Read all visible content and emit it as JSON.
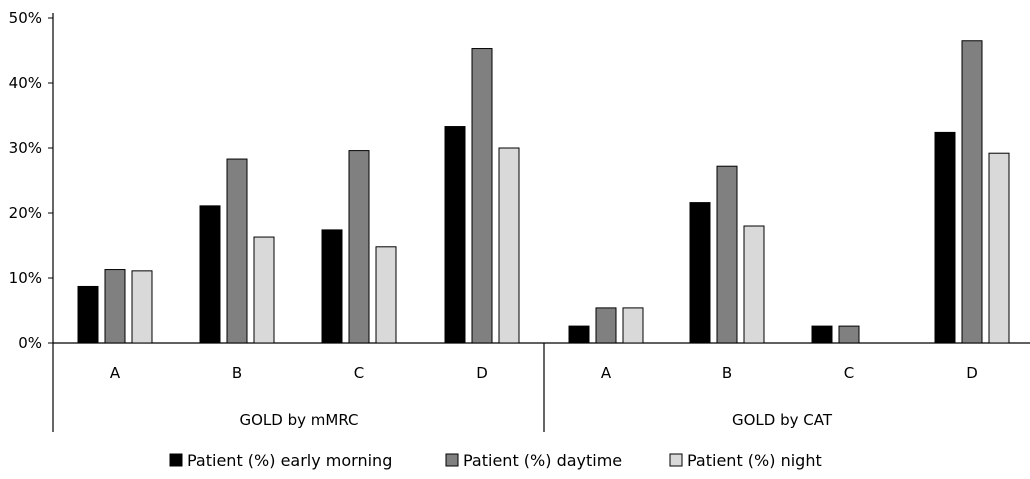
{
  "chart_data": {
    "type": "bar",
    "groups": [
      {
        "label": "GOLD by mMRC",
        "categories": [
          "A",
          "B",
          "C",
          "D"
        ]
      },
      {
        "label": "GOLD by CAT",
        "categories": [
          "A",
          "B",
          "C",
          "D"
        ]
      }
    ],
    "series": [
      {
        "name": "Patient (%) early morning",
        "color": "#000000",
        "values": [
          8.7,
          21.1,
          17.4,
          33.3,
          2.6,
          21.6,
          2.6,
          32.4
        ]
      },
      {
        "name": "Patient (%) daytime",
        "color": "#808080",
        "values": [
          11.3,
          28.3,
          29.6,
          45.3,
          5.4,
          27.2,
          2.6,
          46.5
        ]
      },
      {
        "name": "Patient (%) night",
        "color": "#d9d9d9",
        "values": [
          11.1,
          16.3,
          14.8,
          30.0,
          5.4,
          18.0,
          0,
          29.2
        ]
      }
    ],
    "y_ticks": [
      "0%",
      "10%",
      "20%",
      "30%",
      "40%",
      "50%"
    ],
    "ylim": [
      0,
      50
    ],
    "legend_position": "bottom",
    "grid": false
  }
}
